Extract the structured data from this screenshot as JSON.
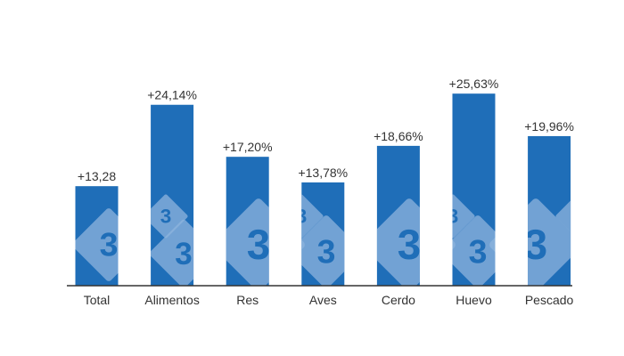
{
  "chart_data": {
    "type": "bar",
    "categories": [
      "Total",
      "Alimentos",
      "Res",
      "Aves",
      "Cerdo",
      "Huevo",
      "Pescado"
    ],
    "values": [
      13.28,
      24.14,
      17.2,
      13.78,
      18.66,
      25.63,
      19.96
    ],
    "data_labels": [
      "+13,28",
      "+24,14%",
      "+17,20%",
      "+13,78%",
      "+18,66%",
      "+25,63%",
      "+19,96%"
    ],
    "title": "",
    "xlabel": "",
    "ylabel": "",
    "ylim": [
      0,
      28
    ],
    "grid": false,
    "legend": "none",
    "bar_color": "#1f6eb8",
    "watermark_glyph": "3"
  }
}
